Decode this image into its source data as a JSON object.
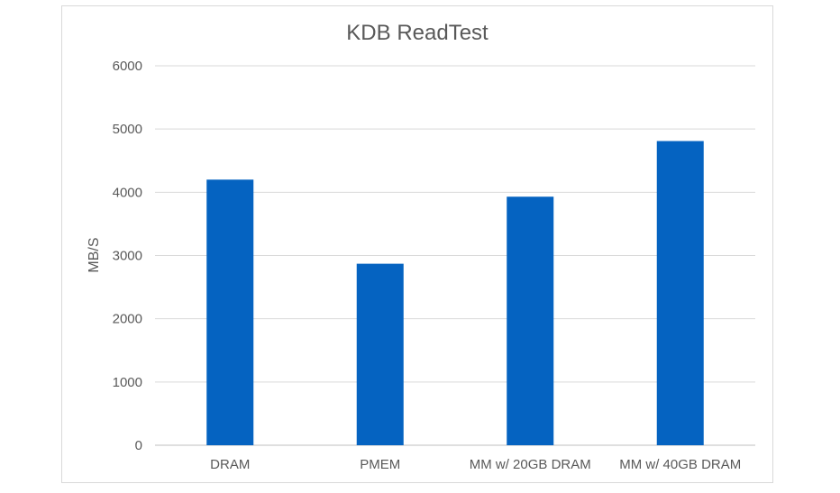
{
  "chart_data": {
    "type": "bar",
    "title": "KDB ReadTest",
    "xlabel": "",
    "ylabel": "MB/S",
    "categories": [
      "DRAM",
      "PMEM",
      "MM w/ 20GB DRAM",
      "MM w/ 40GB DRAM"
    ],
    "values": [
      4200,
      2870,
      3930,
      4810
    ],
    "ylim": [
      0,
      6000
    ],
    "yticks": [
      0,
      1000,
      2000,
      3000,
      4000,
      5000,
      6000
    ],
    "grid": true,
    "legend": "none",
    "bar_color": "#0563C1"
  }
}
